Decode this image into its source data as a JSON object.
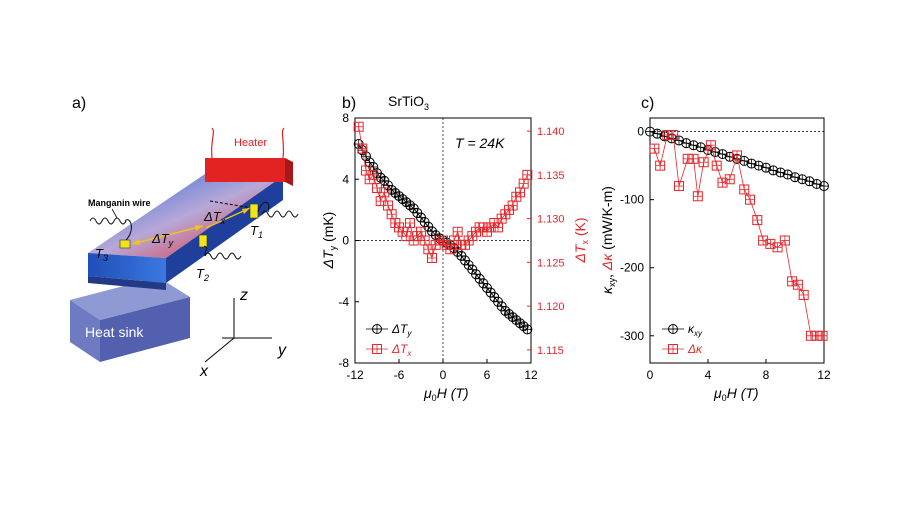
{
  "colors": {
    "black": "#000000",
    "red": "#e8262b",
    "heater": "#e02020",
    "heatsink": "#7b86c9",
    "bar_blue": "#2f6bd8",
    "contact": "#f2e41c"
  },
  "panel_a": {
    "label": "a)",
    "heater": "Heater",
    "heat_sink": "Heat sink",
    "wire": "Manganin wire",
    "dTy": "ΔT",
    "dTy_sub": "y",
    "dTx": "ΔT",
    "dTx_sub": "x",
    "T1": "T",
    "T1_sub": "1",
    "T2": "T",
    "T2_sub": "2",
    "T3": "T",
    "T3_sub": "3",
    "axis_x": "x",
    "axis_y": "y",
    "axis_z": "z"
  },
  "chart_data": [
    {
      "type": "scatter",
      "panel_label": "b)",
      "title": "SrTiO",
      "title_sub": "3",
      "annotation": "T  =  24K",
      "xlabel": "μ",
      "xlabel_sub": "0",
      "xlabel_rest": "H (T)",
      "ylabel_left": "ΔT",
      "ylabel_left_sub": "y",
      "ylabel_left_rest": " (mK)",
      "ylabel_right": "ΔT",
      "ylabel_right_sub": "x",
      "ylabel_right_rest": " (K)",
      "xlim": [
        -12,
        12
      ],
      "ylim_left": [
        -8,
        8
      ],
      "ylim_right": [
        1.1135,
        1.1415
      ],
      "xticks": [
        "-12",
        "-6",
        "0",
        "6",
        "12"
      ],
      "yticks_left": [
        "8",
        "4",
        "0",
        "-4",
        "-8"
      ],
      "yticks_right": [
        "1.140",
        "1.135",
        "1.130",
        "1.125",
        "1.120",
        "1.115"
      ],
      "legend": [
        {
          "name": "ΔT",
          "sub": "y"
        },
        {
          "name": "ΔT",
          "sub": "x"
        }
      ],
      "series": [
        {
          "name": "ΔTy",
          "axis": "left",
          "color": "#000000",
          "marker": "circle-plus",
          "x": [
            -11.5,
            -11,
            -10.5,
            -10,
            -9.5,
            -9,
            -8.5,
            -8,
            -7.5,
            -7,
            -6.5,
            -6,
            -5.5,
            -5,
            -4.5,
            -4,
            -3.5,
            -3,
            -2.5,
            -2,
            -1.5,
            -1,
            -0.5,
            0,
            0.5,
            1,
            1.5,
            2,
            2.5,
            3,
            3.5,
            4,
            4.5,
            5,
            5.5,
            6,
            6.5,
            7,
            7.5,
            8,
            8.5,
            9,
            9.5,
            10,
            10.5,
            11,
            11.5
          ],
          "y": [
            6.3,
            5.9,
            5.5,
            5.1,
            4.8,
            4.4,
            4.1,
            3.9,
            3.6,
            3.3,
            3.1,
            2.9,
            2.7,
            2.5,
            2.3,
            2.1,
            1.8,
            1.5,
            1.2,
            0.9,
            0.6,
            0.35,
            0.15,
            0.0,
            -0.15,
            -0.3,
            -0.5,
            -0.75,
            -1.0,
            -1.3,
            -1.6,
            -1.9,
            -2.2,
            -2.5,
            -2.8,
            -3.1,
            -3.4,
            -3.7,
            -4.0,
            -4.3,
            -4.6,
            -4.8,
            -5.0,
            -5.2,
            -5.4,
            -5.6,
            -5.8
          ]
        },
        {
          "name": "ΔTx",
          "axis": "right",
          "color": "#e8262b",
          "marker": "square-plus",
          "x": [
            -11.5,
            -11,
            -10.5,
            -10,
            -9.5,
            -9,
            -8.5,
            -8,
            -7.5,
            -7,
            -6.5,
            -6,
            -5.5,
            -5,
            -4.5,
            -4,
            -3.5,
            -3,
            -2.5,
            -2,
            -1.5,
            -1,
            -0.5,
            0,
            0.5,
            1,
            1.5,
            2,
            2.5,
            3,
            3.5,
            4,
            4.5,
            5,
            5.5,
            6,
            6.5,
            7,
            7.5,
            8,
            8.5,
            9,
            9.5,
            10,
            10.5,
            11,
            11.5
          ],
          "y": [
            1.1405,
            1.138,
            1.1355,
            1.1345,
            1.135,
            1.1335,
            1.132,
            1.133,
            1.1315,
            1.1305,
            1.1295,
            1.129,
            1.1285,
            1.128,
            1.1295,
            1.1275,
            1.128,
            1.1285,
            1.1275,
            1.1265,
            1.1255,
            1.127,
            1.1275,
            1.1275,
            1.127,
            1.1265,
            1.1275,
            1.1285,
            1.127,
            1.127,
            1.1275,
            1.128,
            1.1285,
            1.129,
            1.129,
            1.1285,
            1.129,
            1.1295,
            1.129,
            1.13,
            1.1305,
            1.131,
            1.1315,
            1.1325,
            1.133,
            1.134,
            1.135
          ]
        }
      ]
    },
    {
      "type": "scatter",
      "panel_label": "c)",
      "xlabel": "μ",
      "xlabel_sub": "0",
      "xlabel_rest": "H (T)",
      "ylabel": "κ",
      "ylabel_sub": "xy",
      "ylabel_mid": ", ",
      "ylabel_kappa2": "Δκ",
      "ylabel_rest": " (mW/K-m)",
      "xlim": [
        0,
        12
      ],
      "ylim": [
        -340,
        20
      ],
      "xticks": [
        "0",
        "4",
        "8",
        "12"
      ],
      "yticks": [
        "0",
        "-100",
        "-200",
        "-300"
      ],
      "legend": [
        {
          "name": "κ",
          "sub": "xy"
        },
        {
          "name": "Δκ",
          "sub": ""
        }
      ],
      "series": [
        {
          "name": "κxy",
          "color": "#000000",
          "marker": "circle-plus",
          "x": [
            0,
            0.5,
            1,
            1.5,
            2,
            2.5,
            3,
            3.5,
            4,
            4.5,
            5,
            5.5,
            6,
            6.5,
            7,
            7.5,
            8,
            8.5,
            9,
            9.5,
            10,
            10.5,
            11,
            11.5,
            12
          ],
          "y": [
            0,
            -3,
            -7,
            -10,
            -13,
            -17,
            -20,
            -23,
            -27,
            -30,
            -33,
            -37,
            -40,
            -43,
            -47,
            -50,
            -53,
            -57,
            -60,
            -63,
            -67,
            -70,
            -73,
            -77,
            -80
          ]
        },
        {
          "name": "Δκ",
          "color": "#e8262b",
          "marker": "square-plus",
          "x": [
            0.3,
            0.7,
            1.2,
            1.6,
            2.0,
            2.6,
            3.0,
            3.3,
            3.7,
            4.2,
            4.6,
            5.0,
            5.5,
            6.0,
            6.5,
            6.9,
            7.4,
            7.8,
            8.3,
            8.8,
            9.3,
            9.8,
            10.2,
            10.6,
            11.1,
            11.5,
            11.9
          ],
          "y": [
            -25,
            -50,
            -5,
            -5,
            -80,
            -40,
            -40,
            -95,
            -45,
            -20,
            -50,
            -75,
            -70,
            -35,
            -85,
            -100,
            -130,
            -160,
            -165,
            -170,
            -160,
            -220,
            -225,
            -240,
            -300,
            -300,
            -300
          ]
        }
      ]
    }
  ]
}
